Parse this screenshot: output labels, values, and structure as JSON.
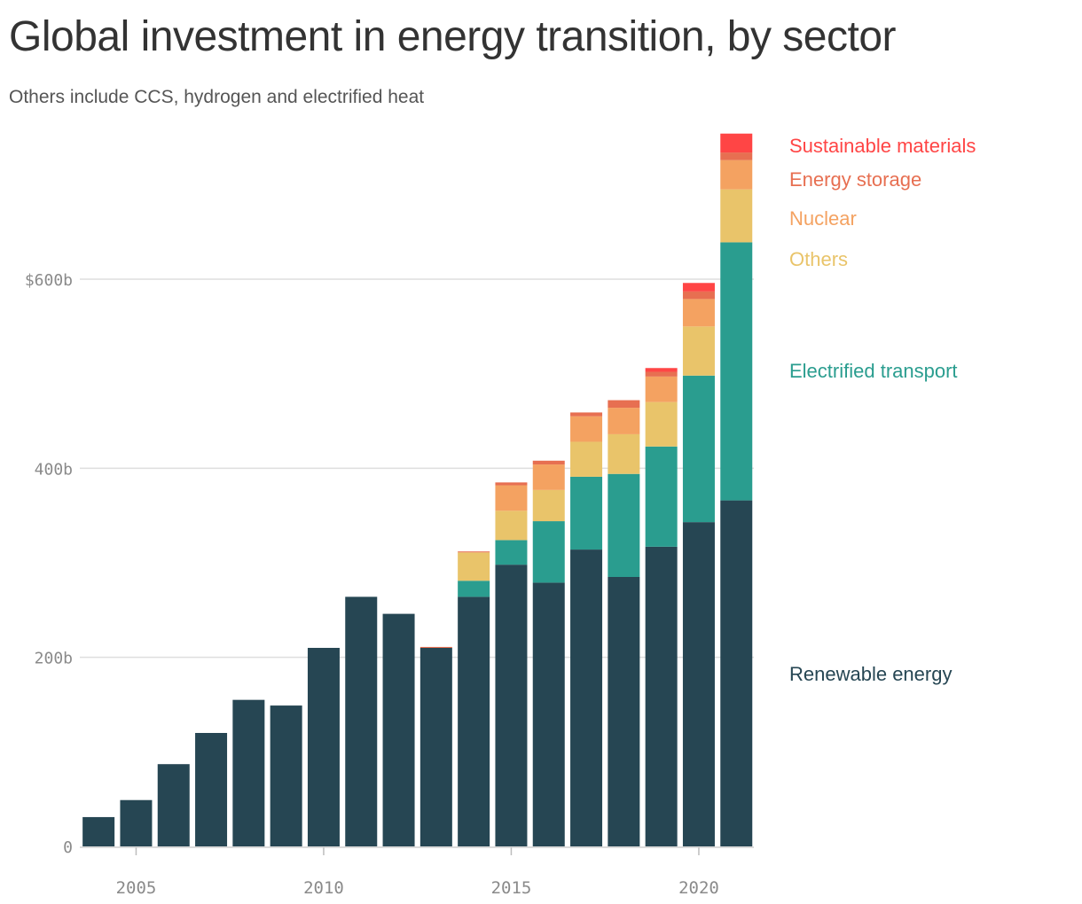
{
  "title": "Global investment in energy transition, by sector",
  "subtitle": "Others include CCS, hydrogen and electrified heat",
  "chart_data": {
    "type": "bar",
    "stacked": true,
    "title": "Global investment in energy transition, by sector",
    "subtitle": "Others include CCS, hydrogen and electrified heat",
    "xlabel": "",
    "ylabel": "",
    "ylim": [
      0,
      760
    ],
    "grid": true,
    "legend_position": "right",
    "x": [
      2004,
      2005,
      2006,
      2007,
      2008,
      2009,
      2010,
      2011,
      2012,
      2013,
      2014,
      2015,
      2016,
      2017,
      2018,
      2019,
      2020,
      2021
    ],
    "x_ticks": [
      2005,
      2010,
      2015,
      2020
    ],
    "x_tick_labels": [
      "2005",
      "2010",
      "2015",
      "2020"
    ],
    "y_ticks": [
      0,
      200,
      400,
      600
    ],
    "y_tick_labels": [
      "0",
      "200b",
      "400b",
      "$600b"
    ],
    "series": [
      {
        "name": "Renewable energy",
        "color": "#264653",
        "values": [
          31,
          49,
          87,
          120,
          155,
          149,
          210,
          264,
          246,
          210,
          264,
          298,
          279,
          314,
          285,
          317,
          343,
          366
        ]
      },
      {
        "name": "Electrified transport",
        "color": "#2a9d8f",
        "values": [
          0,
          0,
          0,
          0,
          0,
          0,
          0,
          0,
          0,
          0,
          17,
          26,
          65,
          77,
          109,
          106,
          155,
          273
        ]
      },
      {
        "name": "Others",
        "color": "#e9c46a",
        "values": [
          0,
          0,
          0,
          0,
          0,
          0,
          0,
          0,
          0,
          0,
          30,
          31,
          33,
          37,
          42,
          47,
          52,
          56
        ]
      },
      {
        "name": "Nuclear",
        "color": "#f4a261",
        "values": [
          0,
          0,
          0,
          0,
          0,
          0,
          0,
          0,
          0,
          0,
          0,
          27,
          27,
          27,
          28,
          27,
          29,
          31
        ]
      },
      {
        "name": "Energy storage",
        "color": "#e76f51",
        "values": [
          0,
          0,
          0,
          0,
          0,
          0,
          0,
          0,
          0,
          1,
          1,
          3,
          4,
          4,
          8,
          5,
          8,
          8
        ]
      },
      {
        "name": "Sustainable materials",
        "color": "#ff4545",
        "values": [
          0,
          0,
          0,
          0,
          0,
          0,
          0,
          0,
          0,
          0,
          0,
          0,
          0,
          0,
          0,
          4,
          9,
          20
        ]
      }
    ]
  }
}
